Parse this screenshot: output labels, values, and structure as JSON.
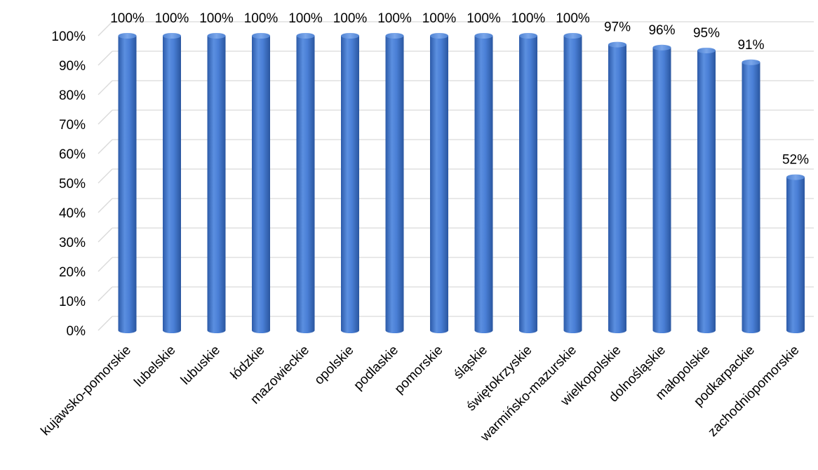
{
  "chart_data": {
    "type": "bar",
    "title": "",
    "xlabel": "",
    "ylabel": "",
    "ylim": [
      0,
      100
    ],
    "y_unit": "%",
    "y_ticks": [
      0,
      10,
      20,
      30,
      40,
      50,
      60,
      70,
      80,
      90,
      100
    ],
    "y_tick_labels": [
      "0%",
      "10%",
      "20%",
      "30%",
      "40%",
      "50%",
      "60%",
      "70%",
      "80%",
      "90%",
      "100%"
    ],
    "grid": true,
    "legend": "none",
    "bar_color": "#4472c4",
    "categories": [
      "kujawsko-pomorskie",
      "lubelskie",
      "lubuskie",
      "łódzkie",
      "mazowieckie",
      "opolskie",
      "podlaskie",
      "pomorskie",
      "śląskie",
      "świętokrzyskie",
      "warmińsko-mazurskie",
      "wielkopolskie",
      "dolnośląskie",
      "małopolskie",
      "podkarpackie",
      "zachodniopomorskie"
    ],
    "values": [
      100,
      100,
      100,
      100,
      100,
      100,
      100,
      100,
      100,
      100,
      100,
      97,
      96,
      95,
      91,
      52
    ],
    "data_labels": [
      "100%",
      "100%",
      "100%",
      "100%",
      "100%",
      "100%",
      "100%",
      "100%",
      "100%",
      "100%",
      "100%",
      "97%",
      "96%",
      "95%",
      "91%",
      "52%"
    ]
  }
}
